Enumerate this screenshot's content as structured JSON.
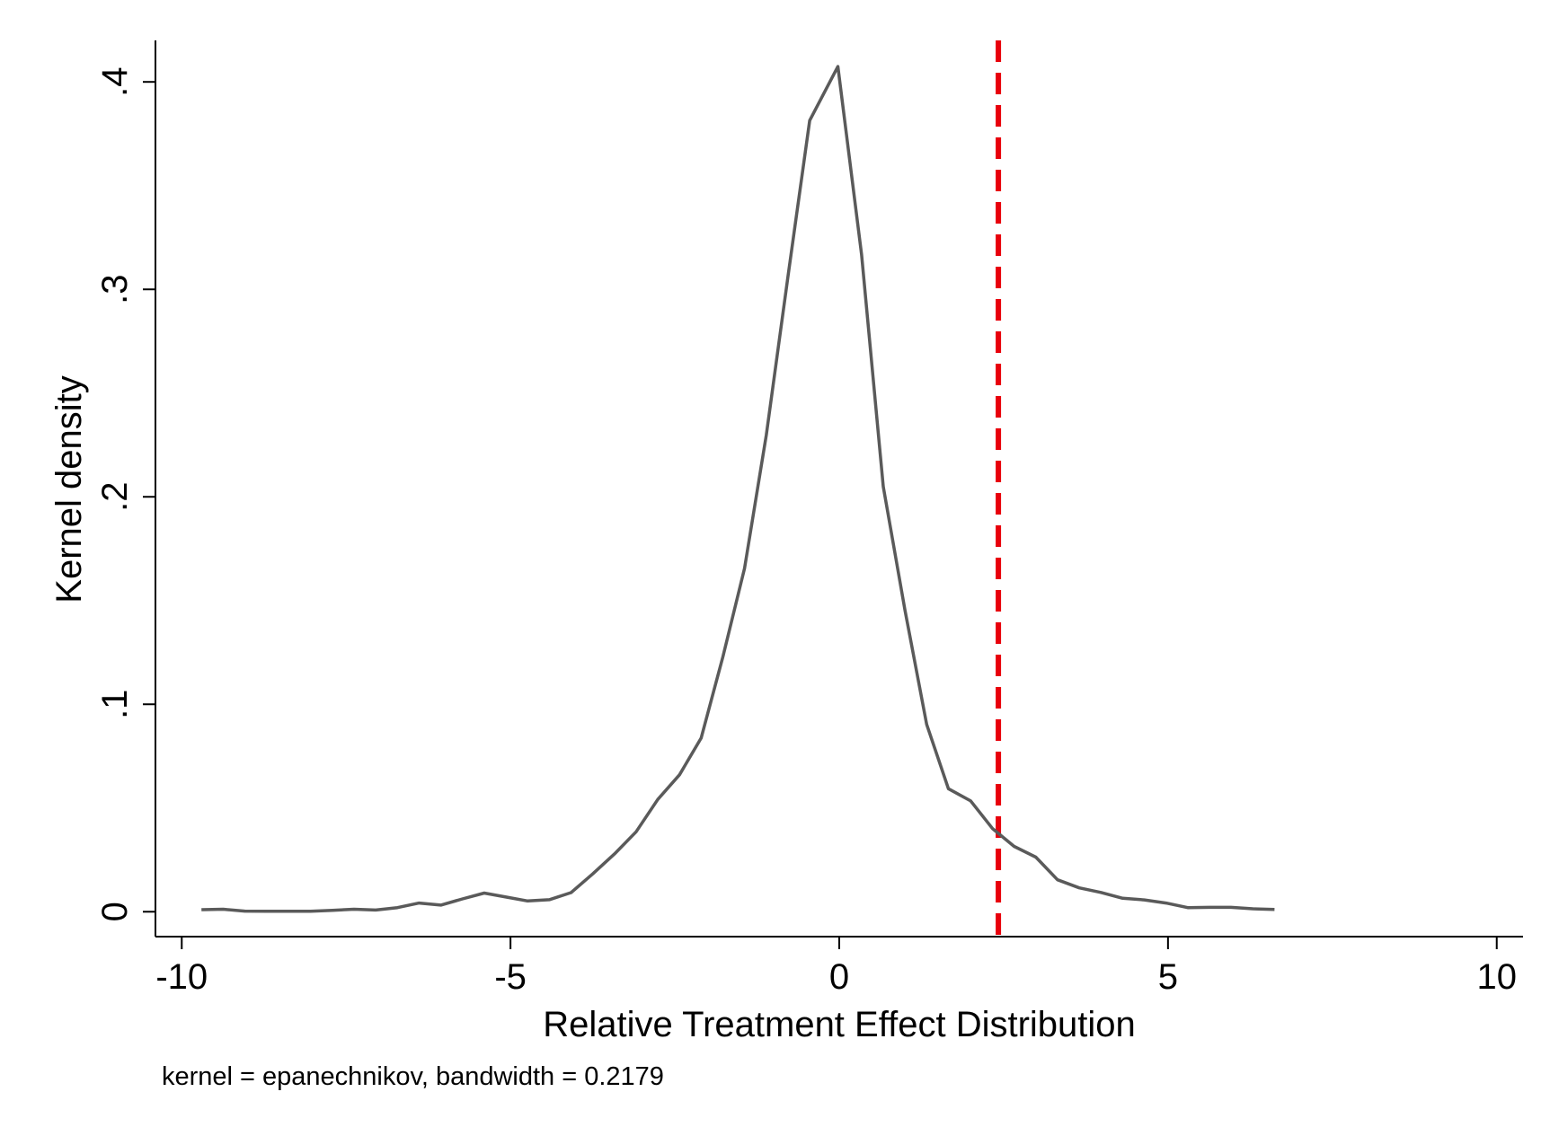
{
  "chart_data": {
    "type": "line",
    "title": "",
    "xlabel": "Relative Treatment Effect Distribution",
    "ylabel": "Kernel density",
    "note": "kernel = epanechnikov, bandwidth = 0.2179",
    "xlim": [
      -10.4,
      10.4
    ],
    "ylim": [
      -0.012,
      0.42
    ],
    "x_ticks": [
      {
        "value": -10,
        "label": "-10"
      },
      {
        "value": -5,
        "label": "-5"
      },
      {
        "value": 0,
        "label": "0"
      },
      {
        "value": 5,
        "label": "5"
      },
      {
        "value": 10,
        "label": "10"
      }
    ],
    "y_ticks": [
      {
        "value": 0,
        "label": "0"
      },
      {
        "value": 0.1,
        "label": ".1"
      },
      {
        "value": 0.2,
        "label": ".2"
      },
      {
        "value": 0.3,
        "label": ".3"
      },
      {
        "value": 0.4,
        "label": ".4"
      }
    ],
    "grid": false,
    "series": [
      {
        "color": "#5a5a5a",
        "x": [
          -9.7,
          -9.37,
          -9.04,
          -8.7,
          -8.37,
          -8.04,
          -7.71,
          -7.38,
          -7.05,
          -6.72,
          -6.39,
          -6.06,
          -5.73,
          -5.4,
          -5.07,
          -4.74,
          -4.41,
          -4.08,
          -3.75,
          -3.42,
          -3.09,
          -2.76,
          -2.43,
          -2.1,
          -1.77,
          -1.44,
          -1.11,
          -0.78,
          -0.45,
          -0.02,
          0.34,
          0.67,
          1.0,
          1.33,
          1.66,
          2.0,
          2.33,
          2.66,
          2.99,
          3.32,
          3.65,
          3.98,
          4.31,
          4.64,
          4.97,
          5.3,
          5.63,
          5.96,
          6.29,
          6.62
        ],
        "y": [
          0.001,
          0.0012,
          0.0003,
          0.0002,
          0.0002,
          0.0002,
          0.0007,
          0.0012,
          0.0008,
          0.002,
          0.0042,
          0.0032,
          0.0062,
          0.009,
          0.0071,
          0.0052,
          0.0058,
          0.0092,
          0.0182,
          0.0278,
          0.0385,
          0.0541,
          0.066,
          0.0837,
          0.1229,
          0.1655,
          0.2297,
          0.3061,
          0.3814,
          0.4074,
          0.3166,
          0.2049,
          0.1452,
          0.0903,
          0.0593,
          0.0534,
          0.0401,
          0.0315,
          0.0263,
          0.0154,
          0.0115,
          0.0093,
          0.0065,
          0.0057,
          0.0042,
          0.002,
          0.0021,
          0.0021,
          0.0014,
          0.0011
        ]
      }
    ],
    "reference_line": {
      "x": 2.42,
      "color": "#e8000b",
      "style": "dashed"
    }
  }
}
